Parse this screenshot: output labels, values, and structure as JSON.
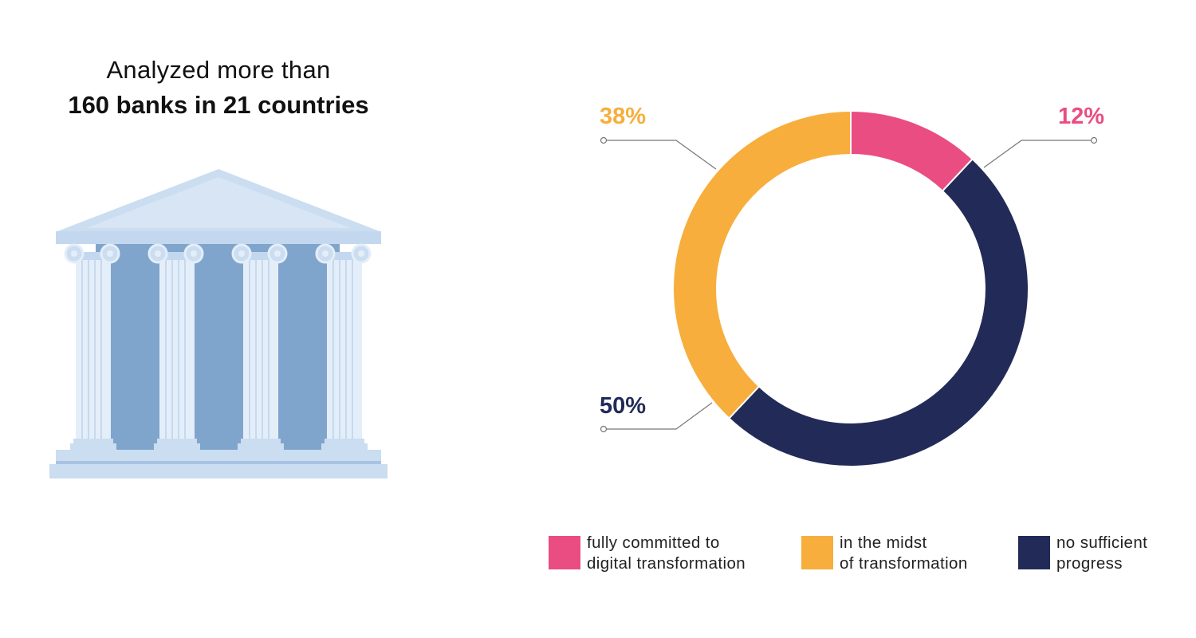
{
  "headline": {
    "line1": "Analyzed more than",
    "line2": "160 banks in 21 countries"
  },
  "illustration": {
    "icon": "bank-building-icon",
    "colors": {
      "light": "#CBDDF0",
      "mid": "#80A5CC",
      "column": "#E4EEF9"
    }
  },
  "chart_data": {
    "type": "pie",
    "donut": true,
    "slices": [
      {
        "label": "fully committed to\ndigital transformation",
        "value_label": "12%",
        "value": 12,
        "color": "#EA4D81"
      },
      {
        "label": "no sufficient\nprogress",
        "value_label": "50%",
        "value": 50,
        "color": "#222B58"
      },
      {
        "label": "in the midst\nof transformation",
        "value_label": "38%",
        "value": 38,
        "color": "#F7AE3C"
      }
    ],
    "legend_position": "bottom"
  }
}
